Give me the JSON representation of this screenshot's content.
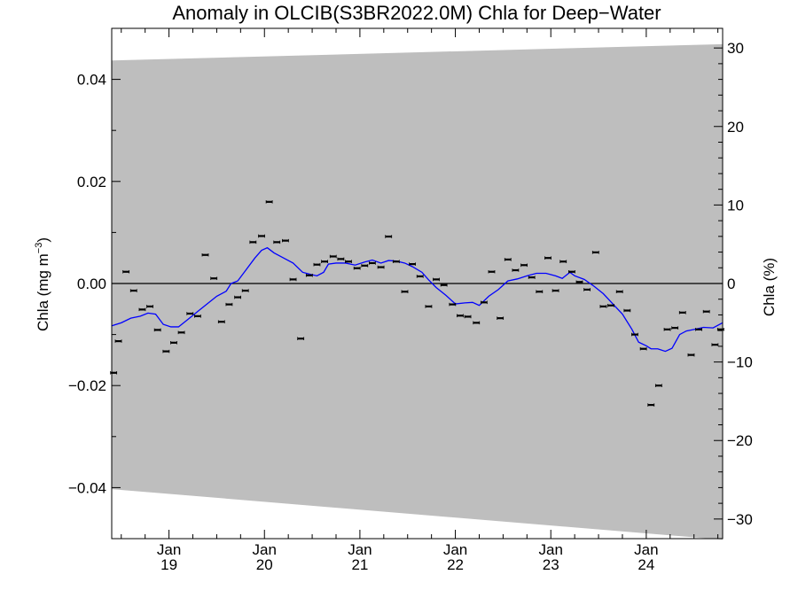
{
  "chart_data": {
    "type": "scatter",
    "title": "Anomaly in OLCIB(S3BR2022.0M) Chla for Deep−Water",
    "ylabel_left_main": "Chla (mg m",
    "ylabel_left_sup": "−3",
    "ylabel_left_close": ")",
    "ylabel_right": "Chla (%)",
    "xlim": [
      2018.4,
      2024.8
    ],
    "ylim_left": [
      -0.05,
      0.05
    ],
    "ylim_right": [
      -32.5,
      32.5
    ],
    "x_ticks": [
      {
        "x": 2019.0,
        "month": "Jan",
        "year": "19"
      },
      {
        "x": 2020.0,
        "month": "Jan",
        "year": "20"
      },
      {
        "x": 2021.0,
        "month": "Jan",
        "year": "21"
      },
      {
        "x": 2022.0,
        "month": "Jan",
        "year": "22"
      },
      {
        "x": 2023.0,
        "month": "Jan",
        "year": "23"
      },
      {
        "x": 2024.0,
        "month": "Jan",
        "year": "24"
      }
    ],
    "y_ticks_left": [
      {
        "v": 0.04,
        "label": "0.04"
      },
      {
        "v": 0.02,
        "label": "0.02"
      },
      {
        "v": 0.0,
        "label": "0.00"
      },
      {
        "v": -0.02,
        "label": "−0.02"
      },
      {
        "v": -0.04,
        "label": "−0.04"
      }
    ],
    "y_ticks_right": [
      {
        "v": 30,
        "label": "30"
      },
      {
        "v": 20,
        "label": "20"
      },
      {
        "v": 10,
        "label": "10"
      },
      {
        "v": 0,
        "label": "0"
      },
      {
        "v": -10,
        "label": "−10"
      },
      {
        "v": -20,
        "label": "−20"
      },
      {
        "v": -30,
        "label": "−30"
      }
    ],
    "uncertainty_band": {
      "x": [
        2018.4,
        2024.8
      ],
      "upper": [
        0.0437,
        0.0469
      ],
      "lower": [
        -0.0403,
        -0.0502
      ],
      "color": "#bebebe"
    },
    "monthly_anomaly": {
      "color": "#000000",
      "points": [
        [
          2018.42,
          -0.0175
        ],
        [
          2018.47,
          -0.0113
        ],
        [
          2018.55,
          0.0023
        ],
        [
          2018.63,
          -0.0014
        ],
        [
          2018.72,
          -0.0051
        ],
        [
          2018.8,
          -0.0045
        ],
        [
          2018.88,
          -0.0091
        ],
        [
          2018.97,
          -0.0133
        ],
        [
          2019.05,
          -0.0116
        ],
        [
          2019.13,
          -0.0096
        ],
        [
          2019.22,
          -0.0059
        ],
        [
          2019.3,
          -0.0064
        ],
        [
          2019.38,
          0.0056
        ],
        [
          2019.47,
          0.001
        ],
        [
          2019.55,
          -0.0075
        ],
        [
          2019.63,
          -0.0041
        ],
        [
          2019.72,
          -0.0027
        ],
        [
          2019.8,
          -0.0014
        ],
        [
          2019.88,
          0.0081
        ],
        [
          2019.97,
          0.0093
        ],
        [
          2020.05,
          0.016
        ],
        [
          2020.13,
          0.0081
        ],
        [
          2020.22,
          0.0084
        ],
        [
          2020.3,
          0.0008
        ],
        [
          2020.38,
          -0.0108
        ],
        [
          2020.47,
          0.0016
        ],
        [
          2020.55,
          0.0037
        ],
        [
          2020.63,
          0.0043
        ],
        [
          2020.72,
          0.0053
        ],
        [
          2020.8,
          0.0048
        ],
        [
          2020.88,
          0.0043
        ],
        [
          2020.97,
          0.003
        ],
        [
          2021.05,
          0.0035
        ],
        [
          2021.13,
          0.004
        ],
        [
          2021.22,
          0.0032
        ],
        [
          2021.3,
          0.0092
        ],
        [
          2021.38,
          0.0043
        ],
        [
          2021.47,
          -0.0016
        ],
        [
          2021.55,
          0.0038
        ],
        [
          2021.63,
          0.0014
        ],
        [
          2021.72,
          -0.0045
        ],
        [
          2021.8,
          0.0008
        ],
        [
          2021.88,
          -0.0003
        ],
        [
          2021.97,
          -0.0041
        ],
        [
          2022.05,
          -0.0063
        ],
        [
          2022.13,
          -0.0065
        ],
        [
          2022.22,
          -0.0077
        ],
        [
          2022.3,
          -0.0037
        ],
        [
          2022.38,
          0.0023
        ],
        [
          2022.47,
          -0.0068
        ],
        [
          2022.55,
          0.0047
        ],
        [
          2022.63,
          0.0026
        ],
        [
          2022.72,
          0.0036
        ],
        [
          2022.8,
          0.0012
        ],
        [
          2022.88,
          -0.0016
        ],
        [
          2022.97,
          0.005
        ],
        [
          2023.05,
          -0.0014
        ],
        [
          2023.13,
          0.0043
        ],
        [
          2023.22,
          0.0023
        ],
        [
          2023.3,
          0.0003
        ],
        [
          2023.38,
          -0.0012
        ],
        [
          2023.47,
          0.0061
        ],
        [
          2023.55,
          -0.0045
        ],
        [
          2023.63,
          -0.0043
        ],
        [
          2023.72,
          -0.0016
        ],
        [
          2023.8,
          -0.0053
        ],
        [
          2023.88,
          -0.01
        ],
        [
          2023.97,
          -0.0128
        ],
        [
          2024.05,
          -0.0238
        ],
        [
          2024.13,
          -0.02
        ],
        [
          2024.22,
          -0.009
        ],
        [
          2024.3,
          -0.0087
        ],
        [
          2024.38,
          -0.0057
        ],
        [
          2024.47,
          -0.014
        ],
        [
          2024.55,
          -0.009
        ],
        [
          2024.63,
          -0.0055
        ],
        [
          2024.72,
          -0.012
        ],
        [
          2024.78,
          -0.009
        ]
      ]
    },
    "running_mean": {
      "color": "#0000ff",
      "points": [
        [
          2018.4,
          -0.0083
        ],
        [
          2018.5,
          -0.0077
        ],
        [
          2018.6,
          -0.0068
        ],
        [
          2018.7,
          -0.0064
        ],
        [
          2018.78,
          -0.0058
        ],
        [
          2018.86,
          -0.006
        ],
        [
          2018.94,
          -0.008
        ],
        [
          2019.02,
          -0.0085
        ],
        [
          2019.1,
          -0.0085
        ],
        [
          2019.2,
          -0.007
        ],
        [
          2019.3,
          -0.0055
        ],
        [
          2019.4,
          -0.004
        ],
        [
          2019.5,
          -0.0025
        ],
        [
          2019.6,
          -0.0015
        ],
        [
          2019.65,
          0.0
        ],
        [
          2019.72,
          0.0005
        ],
        [
          2019.8,
          0.0025
        ],
        [
          2019.9,
          0.005
        ],
        [
          2019.97,
          0.0065
        ],
        [
          2020.03,
          0.007
        ],
        [
          2020.1,
          0.006
        ],
        [
          2020.2,
          0.005
        ],
        [
          2020.3,
          0.004
        ],
        [
          2020.4,
          0.0022
        ],
        [
          2020.48,
          0.0018
        ],
        [
          2020.55,
          0.0015
        ],
        [
          2020.62,
          0.0022
        ],
        [
          2020.67,
          0.0038
        ],
        [
          2020.75,
          0.004
        ],
        [
          2020.85,
          0.004
        ],
        [
          2020.95,
          0.0036
        ],
        [
          2021.05,
          0.0042
        ],
        [
          2021.13,
          0.0046
        ],
        [
          2021.22,
          0.004
        ],
        [
          2021.3,
          0.0045
        ],
        [
          2021.38,
          0.0044
        ],
        [
          2021.47,
          0.004
        ],
        [
          2021.55,
          0.0033
        ],
        [
          2021.65,
          0.0022
        ],
        [
          2021.72,
          0.0007
        ],
        [
          2021.8,
          -0.0008
        ],
        [
          2021.9,
          -0.0023
        ],
        [
          2022.0,
          -0.004
        ],
        [
          2022.1,
          -0.0038
        ],
        [
          2022.18,
          -0.0037
        ],
        [
          2022.25,
          -0.0043
        ],
        [
          2022.35,
          -0.0025
        ],
        [
          2022.45,
          -0.0012
        ],
        [
          2022.55,
          0.0005
        ],
        [
          2022.65,
          0.0009
        ],
        [
          2022.75,
          0.0015
        ],
        [
          2022.85,
          0.002
        ],
        [
          2022.95,
          0.002
        ],
        [
          2023.05,
          0.0015
        ],
        [
          2023.12,
          0.001
        ],
        [
          2023.2,
          0.0022
        ],
        [
          2023.25,
          0.0015
        ],
        [
          2023.35,
          0.0008
        ],
        [
          2023.45,
          -0.0005
        ],
        [
          2023.55,
          -0.002
        ],
        [
          2023.65,
          -0.004
        ],
        [
          2023.75,
          -0.006
        ],
        [
          2023.85,
          -0.009
        ],
        [
          2023.92,
          -0.0115
        ],
        [
          2024.0,
          -0.0122
        ],
        [
          2024.05,
          -0.0128
        ],
        [
          2024.12,
          -0.0128
        ],
        [
          2024.2,
          -0.0133
        ],
        [
          2024.27,
          -0.0127
        ],
        [
          2024.35,
          -0.01
        ],
        [
          2024.42,
          -0.0093
        ],
        [
          2024.5,
          -0.009
        ],
        [
          2024.6,
          -0.0086
        ],
        [
          2024.7,
          -0.0087
        ],
        [
          2024.8,
          -0.0077
        ]
      ]
    }
  }
}
